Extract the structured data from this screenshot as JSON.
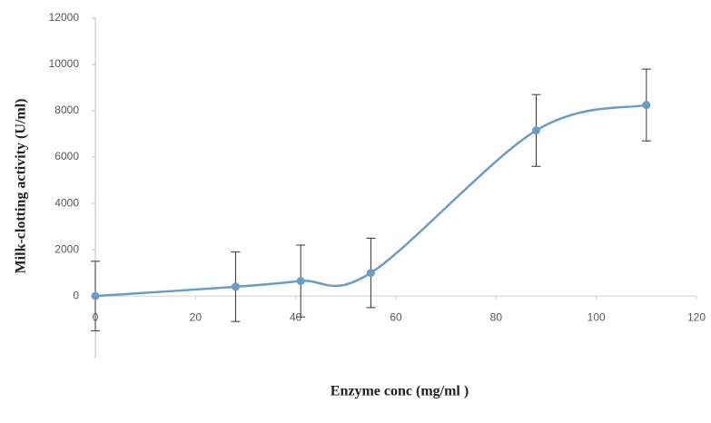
{
  "chart_data": {
    "type": "line",
    "x_label": "Enzyme conc (mg/ml )",
    "y_label": "Milk-clotting activity (U/ml)",
    "x": [
      0,
      28,
      41,
      55,
      88,
      110
    ],
    "values": [
      0,
      400,
      650,
      1000,
      7150,
      8250
    ],
    "errors": [
      1500,
      1500,
      1550,
      1500,
      1550,
      1550
    ],
    "color": "#6b9cc6",
    "smooth": true,
    "xlim": [
      0,
      120
    ],
    "xticks": [
      0,
      20,
      40,
      60,
      80,
      100,
      120
    ],
    "ylim": [
      -2700,
      12000
    ],
    "yticks": [
      0,
      2000,
      4000,
      6000,
      8000,
      10000,
      12000
    ]
  }
}
